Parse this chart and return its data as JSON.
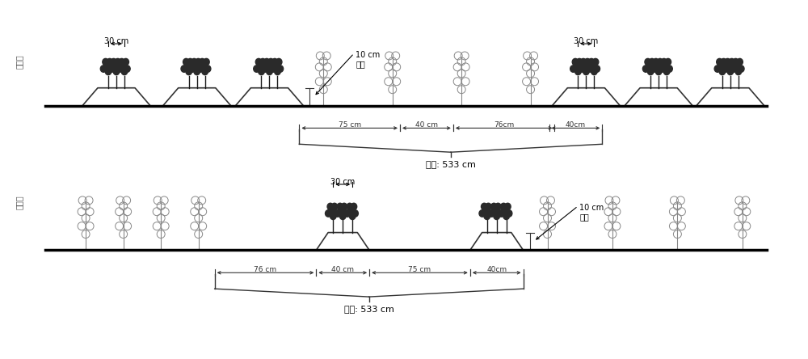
{
  "bg_color": "#ffffff",
  "top_label": "棉花行",
  "bottom_label": "花生行",
  "width_label": "孕宽: 533 cm",
  "top_dim_76": "76 cm",
  "top_dim_40": "40 cm",
  "top_dim_75": "75 cm",
  "top_dim_40b": "40cm",
  "top_dim_10": "10 cm\n坠高",
  "top_dim_30": "30 cm",
  "bot_dim_75": "75 cm",
  "bot_dim_40": "40 cm",
  "bot_dim_76": "76cm",
  "bot_dim_40b": "40cm",
  "bot_dim_30": "30 cm",
  "bot_dim_10": "10 cm\n坠高",
  "fig_width": 10.0,
  "fig_height": 4.44,
  "dpi": 100
}
